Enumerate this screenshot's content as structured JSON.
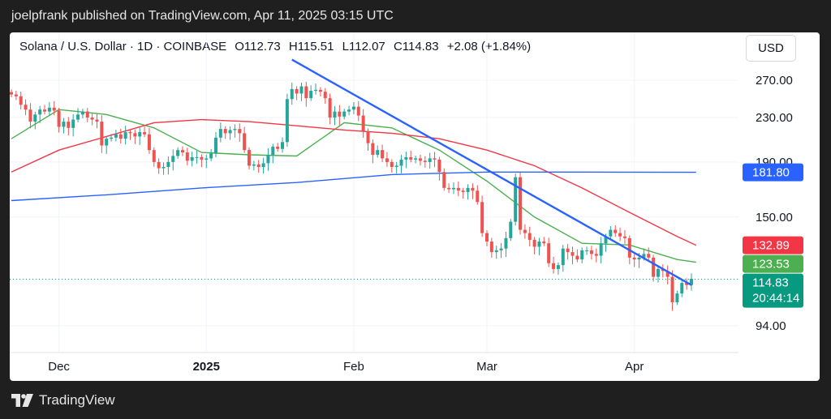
{
  "header": {
    "text": "joelpfrank published on TradingView.com, Apr 11, 2025 03:15 UTC"
  },
  "ohlc": {
    "symbol": "Solana / U.S. Dollar · 1D · COINBASE",
    "open": "O112.73",
    "high": "H115.51",
    "low": "L112.07",
    "close": "C114.83",
    "change": "+2.08 (+1.84%)"
  },
  "currency": "USD",
  "footer": {
    "logo_text": "TradingView",
    "logo_icon": "tradingview-logo-icon"
  },
  "colors": {
    "up": "#26a69a",
    "down": "#ef5350",
    "trend": "#2962ff",
    "ma_short": "#4caf50",
    "ma_mid": "#f23645",
    "ma_long": "#2962ff"
  },
  "chart_data": {
    "type": "candlestick",
    "y_scale": "log",
    "y_ticks": [
      {
        "value": 270,
        "label": "270.00"
      },
      {
        "value": 230,
        "label": "230.00"
      },
      {
        "value": 190,
        "label": "190.00"
      },
      {
        "value": 150,
        "label": "150.00"
      },
      {
        "value": 94,
        "label": "94.00"
      }
    ],
    "x_ticks": [
      {
        "label": "Dec",
        "date": "2024-12-01",
        "bold": false
      },
      {
        "label": "2025",
        "date": "2025-01-01",
        "bold": true
      },
      {
        "label": "Feb",
        "date": "2025-02-01",
        "bold": false
      },
      {
        "label": "Mar",
        "date": "2025-03-01",
        "bold": false
      },
      {
        "label": "Apr",
        "date": "2025-04-01",
        "bold": false
      }
    ],
    "price_labels": [
      {
        "text": "181.80",
        "value": 181.8,
        "color": "#2962ff"
      },
      {
        "text": "132.89",
        "value": 132.89,
        "color": "#f23645"
      },
      {
        "text": "123.53",
        "value": 123.53,
        "color": "#4caf50"
      },
      {
        "text": "114.83",
        "value": 114.83,
        "color": "#089981",
        "countdown": "20:44:14"
      }
    ],
    "last_price": 114.83,
    "trendline": {
      "start": {
        "date": "2025-01-19",
        "price": 295
      },
      "end": {
        "date": "2025-04-13",
        "price": 112
      }
    },
    "start_date": "2024-11-21",
    "closes": [
      254,
      252,
      243,
      238,
      226,
      233,
      238,
      236,
      240,
      237,
      221,
      226,
      220,
      228,
      233,
      236,
      230,
      228,
      226,
      204,
      210,
      211,
      214,
      210,
      216,
      215,
      212,
      216,
      214,
      200,
      190,
      185,
      186,
      190,
      195,
      200,
      198,
      191,
      194,
      194,
      192,
      193,
      197,
      211,
      219,
      215,
      218,
      219,
      215,
      200,
      187,
      188,
      186,
      189,
      196,
      203,
      201,
      207,
      249,
      260,
      255,
      263,
      250,
      258,
      259,
      257,
      250,
      230,
      236,
      231,
      236,
      238,
      241,
      232,
      217,
      206,
      196,
      200,
      193,
      190,
      186,
      187,
      192,
      194,
      192,
      193,
      191,
      190,
      193,
      192,
      182,
      170,
      169,
      170,
      168,
      167,
      170,
      168,
      160,
      140,
      135,
      129,
      130,
      131,
      137,
      147,
      178,
      142,
      140,
      136,
      132,
      135,
      134,
      123,
      120,
      122,
      131,
      129,
      127,
      125,
      130,
      130,
      128,
      127,
      134,
      138,
      142,
      140,
      138,
      137,
      126,
      125,
      126,
      128,
      126,
      116,
      120,
      119,
      116,
      104,
      108,
      113,
      112,
      115
    ],
    "ma_short": [
      [
        0,
        210
      ],
      [
        10,
        238
      ],
      [
        20,
        233
      ],
      [
        30,
        220
      ],
      [
        40,
        198
      ],
      [
        50,
        196
      ],
      [
        60,
        195
      ],
      [
        70,
        225
      ],
      [
        80,
        220
      ],
      [
        90,
        200
      ],
      [
        100,
        175
      ],
      [
        110,
        150
      ],
      [
        120,
        134
      ],
      [
        130,
        133
      ],
      [
        140,
        125
      ],
      [
        144,
        123.5
      ]
    ],
    "ma_mid": [
      [
        0,
        182
      ],
      [
        10,
        200
      ],
      [
        20,
        212
      ],
      [
        30,
        225
      ],
      [
        40,
        228
      ],
      [
        50,
        226
      ],
      [
        60,
        222
      ],
      [
        70,
        218
      ],
      [
        80,
        215
      ],
      [
        90,
        210
      ],
      [
        100,
        200
      ],
      [
        110,
        187
      ],
      [
        120,
        170
      ],
      [
        130,
        153
      ],
      [
        140,
        138
      ],
      [
        144,
        132.9
      ]
    ],
    "ma_long": [
      [
        0,
        161
      ],
      [
        20,
        165
      ],
      [
        40,
        170
      ],
      [
        60,
        174
      ],
      [
        80,
        180
      ],
      [
        100,
        182
      ],
      [
        120,
        182
      ],
      [
        144,
        181.8
      ]
    ]
  }
}
